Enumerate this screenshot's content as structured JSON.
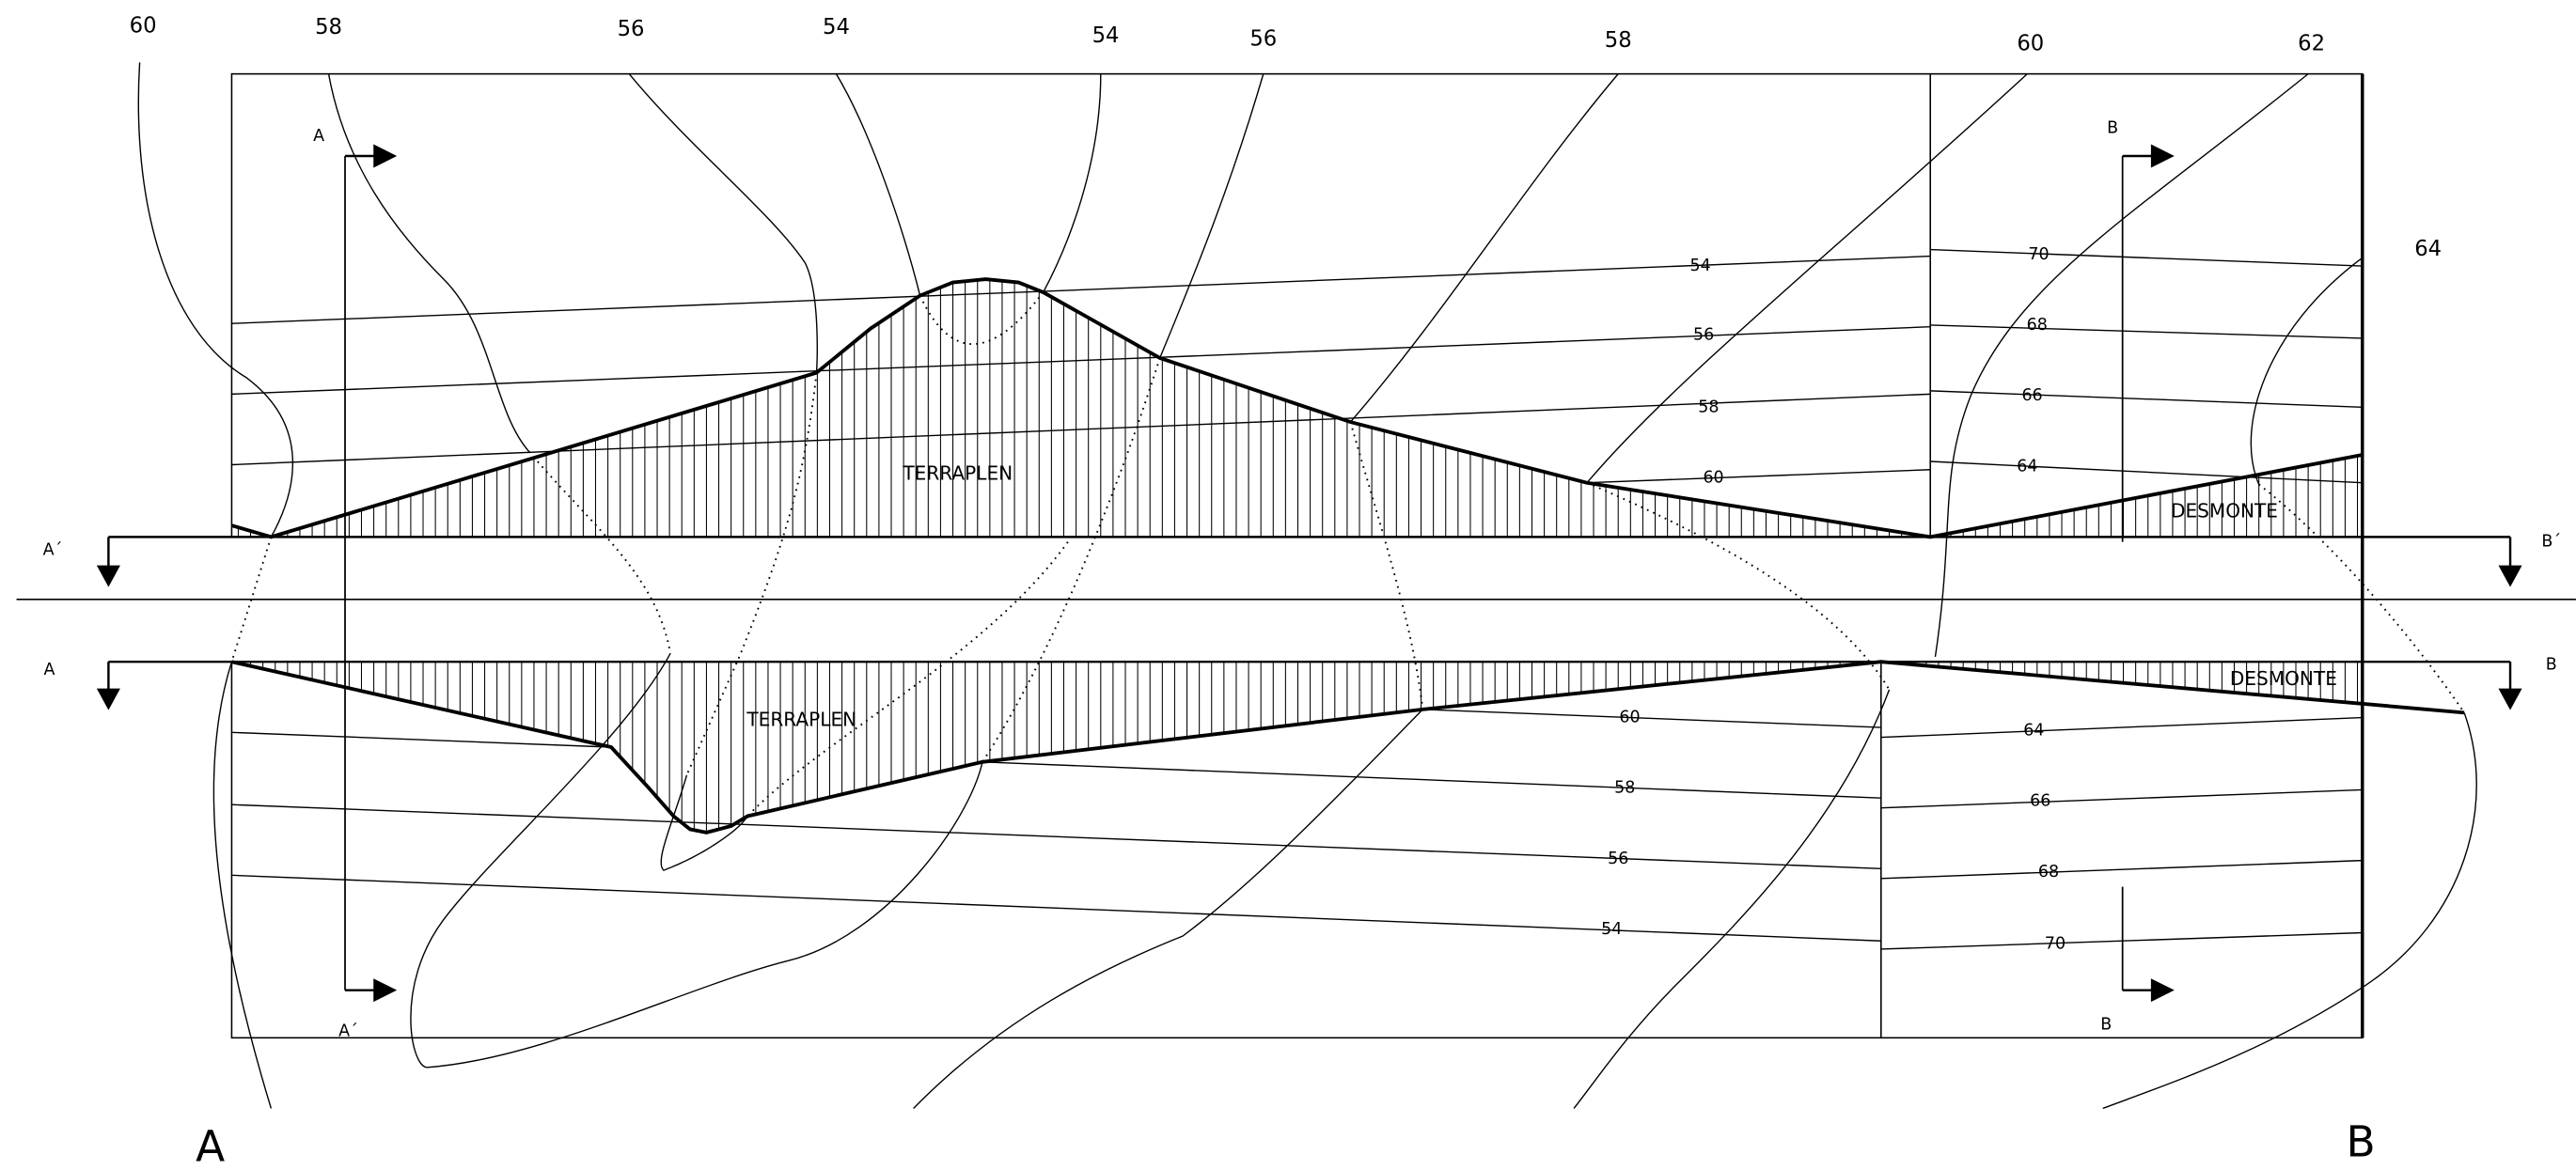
{
  "top_contour_labels": [
    "60",
    "58",
    "56",
    "54",
    "54",
    "56",
    "58",
    "60",
    "62",
    "64"
  ],
  "plan_upper": {
    "fill_label": "TERRAPLEN",
    "cut_label": "DESMONTE",
    "levels_left": [
      "54",
      "56",
      "58",
      "60"
    ],
    "levels_right": [
      "70",
      "68",
      "66",
      "64"
    ]
  },
  "plan_lower": {
    "fill_label": "TERRAPLEN",
    "cut_label": "DESMONTE",
    "levels_left": [
      "60",
      "58",
      "56",
      "54"
    ],
    "levels_right": [
      "64",
      "66",
      "68",
      "70"
    ]
  },
  "section_marks": {
    "a_top": "A",
    "a_bottom": "A´",
    "b_top": "B",
    "b_bottom": "B",
    "left_upper": "A´",
    "right_upper": "B´",
    "left_lower": "A",
    "right_lower": "B"
  },
  "corner_labels": {
    "left": "A",
    "right": "B"
  }
}
